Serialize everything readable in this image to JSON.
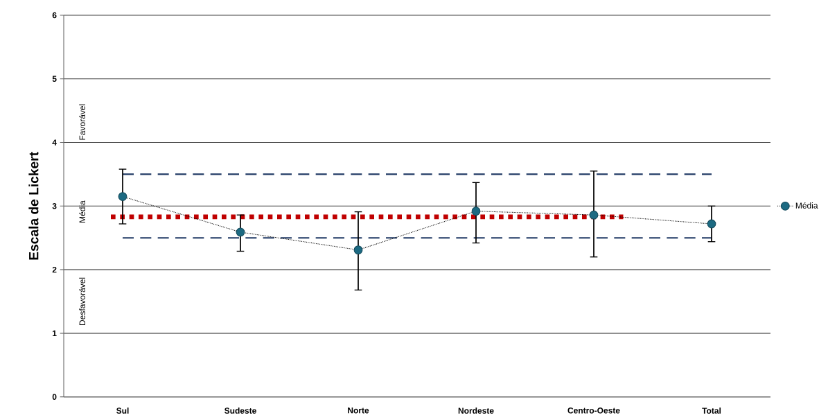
{
  "chart_data": {
    "type": "line",
    "ylabel": "Escala de Lickert",
    "categories": [
      "Sul",
      "Sudeste",
      "Norte",
      "Nordeste",
      "Centro-Oeste",
      "Total"
    ],
    "series": [
      {
        "name": "Média",
        "color": "#1c6a82",
        "values": [
          3.15,
          2.59,
          2.31,
          2.92,
          2.86,
          2.72
        ],
        "errors": [
          [
            2.72,
            3.58
          ],
          [
            2.29,
            2.86
          ],
          [
            1.68,
            2.91
          ],
          [
            2.42,
            3.37
          ],
          [
            2.2,
            3.55
          ],
          [
            2.44,
            3.0
          ]
        ]
      }
    ],
    "ylim": [
      0,
      6
    ],
    "yticks": [
      0,
      1,
      2,
      3,
      4,
      5,
      6
    ],
    "grid": "y",
    "legend": "right",
    "marker": "circle",
    "line_style": "dotted",
    "ref_lines": [
      {
        "axis": "y",
        "value": 3.5,
        "color": "#1f3864",
        "line_style": "dashed"
      },
      {
        "axis": "y",
        "value": 2.5,
        "color": "#1f3864",
        "line_style": "dashed"
      },
      {
        "axis": "y",
        "value": 2.83,
        "color": "#c00000",
        "line_style": "dotted"
      }
    ],
    "annotations": [
      "Favorável",
      "Média",
      "Desfavorável"
    ]
  }
}
